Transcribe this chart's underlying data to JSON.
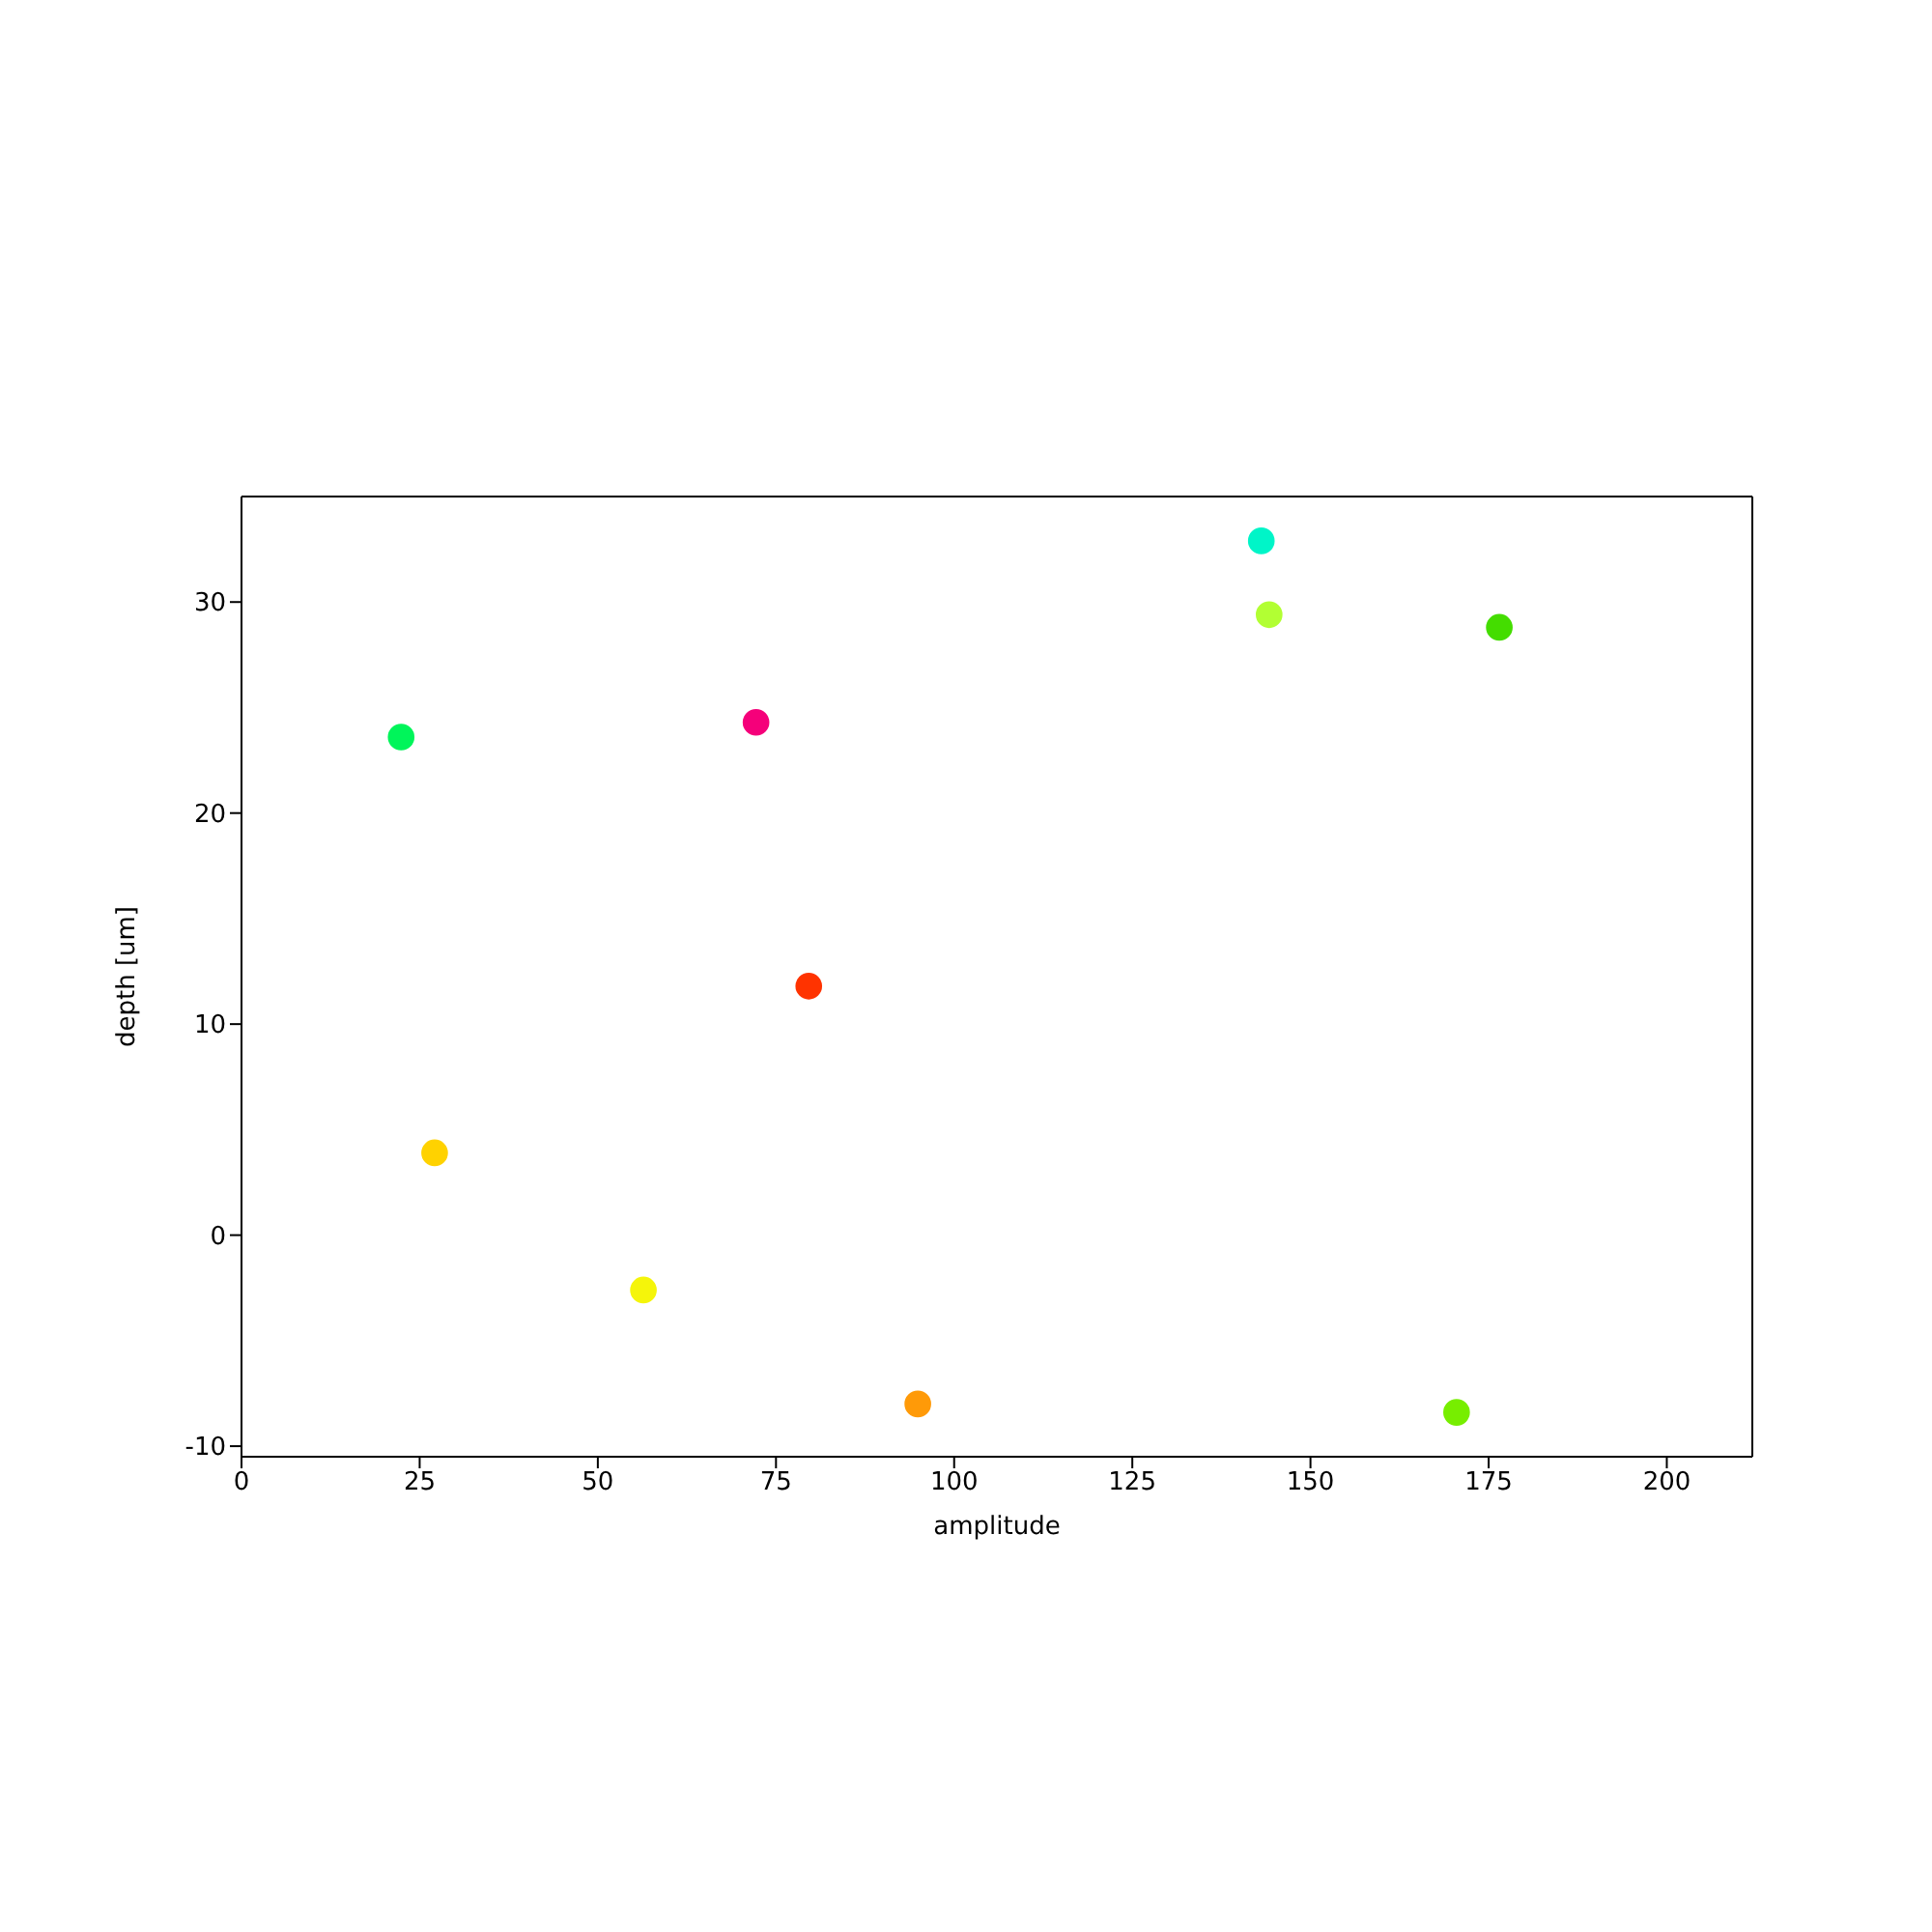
{
  "chart_data": {
    "type": "scatter",
    "xlabel": "amplitude",
    "ylabel": "depth [um]",
    "x": [
      22.4,
      27.1,
      56.4,
      72.2,
      79.6,
      94.9,
      143.1,
      144.2,
      170.5,
      176.5
    ],
    "values": [
      23.6,
      3.9,
      -2.6,
      24.3,
      11.8,
      -8.0,
      32.9,
      29.4,
      -8.4,
      28.8
    ],
    "colors": [
      "#00f55a",
      "#ffd200",
      "#f5f50a",
      "#f5007a",
      "#ff3300",
      "#ff9a08",
      "#00f5c8",
      "#b2ff33",
      "#77ee00",
      "#44dd00"
    ],
    "xlim": [
      0,
      212
    ],
    "xticks": [
      0,
      25,
      50,
      75,
      100,
      125,
      150,
      175,
      200
    ],
    "ylim": [
      -10.5,
      35
    ],
    "yticks": [
      -10,
      0,
      10,
      20,
      30
    ],
    "marker": "circle"
  }
}
